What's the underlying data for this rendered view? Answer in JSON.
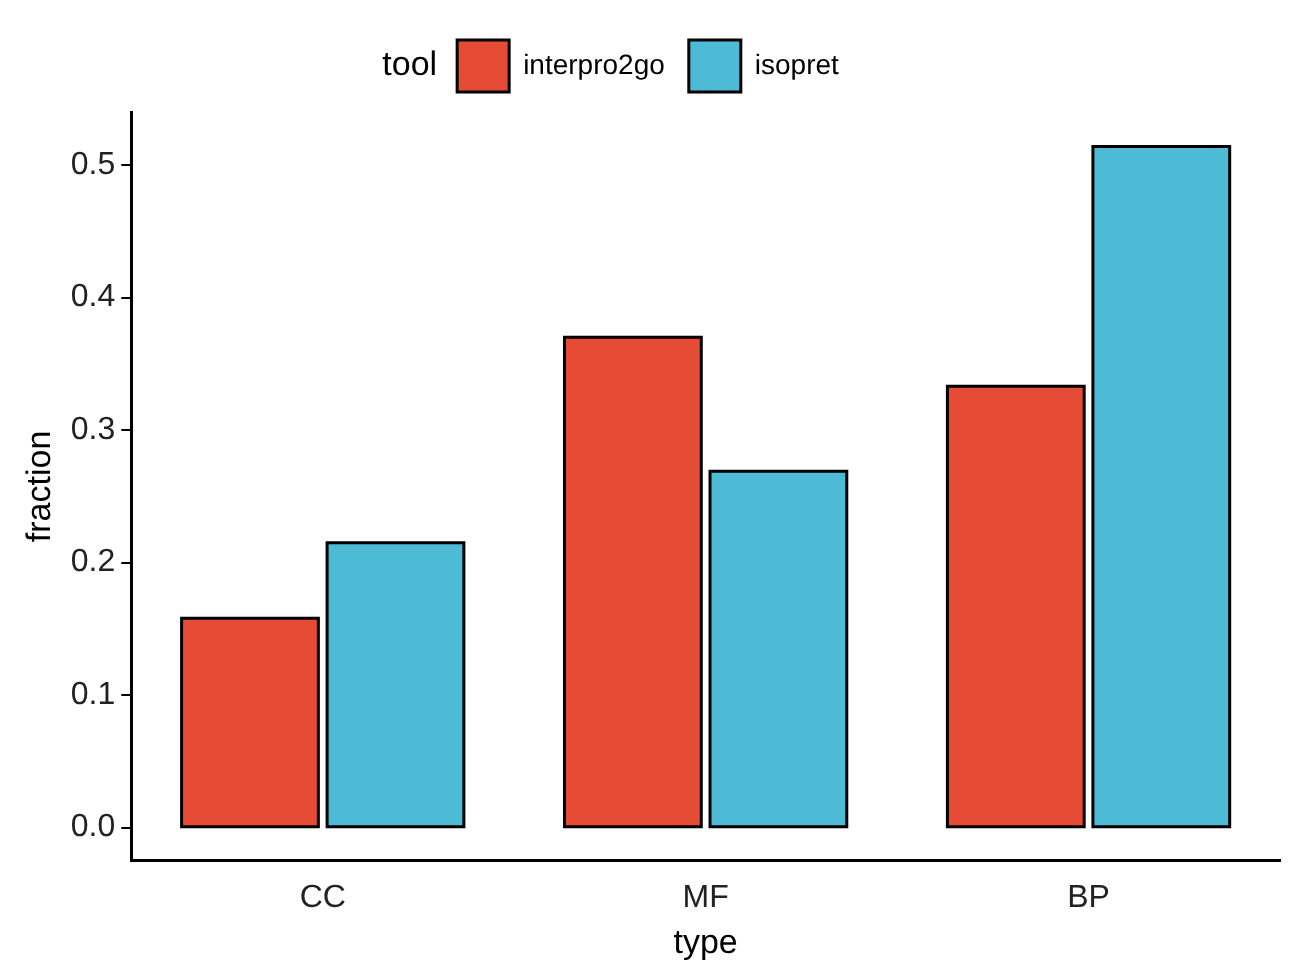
{
  "chart_data": {
    "type": "bar",
    "xlabel": "type",
    "ylabel": "fraction",
    "legend_title": "tool",
    "legend": "top",
    "categories": [
      "CC",
      "MF",
      "BP"
    ],
    "series": [
      {
        "name": "interpro2go",
        "color": "#e64b35",
        "values": [
          0.158,
          0.37,
          0.333
        ]
      },
      {
        "name": "isopret",
        "color": "#4dbbd5",
        "values": [
          0.215,
          0.269,
          0.514
        ]
      }
    ],
    "ylim": [
      -0.025,
      0.54
    ],
    "yticks": [
      {
        "value": 0,
        "label": "0.0"
      },
      0.1,
      0.2,
      0.3,
      0.4,
      0.5
    ],
    "grid": false
  }
}
